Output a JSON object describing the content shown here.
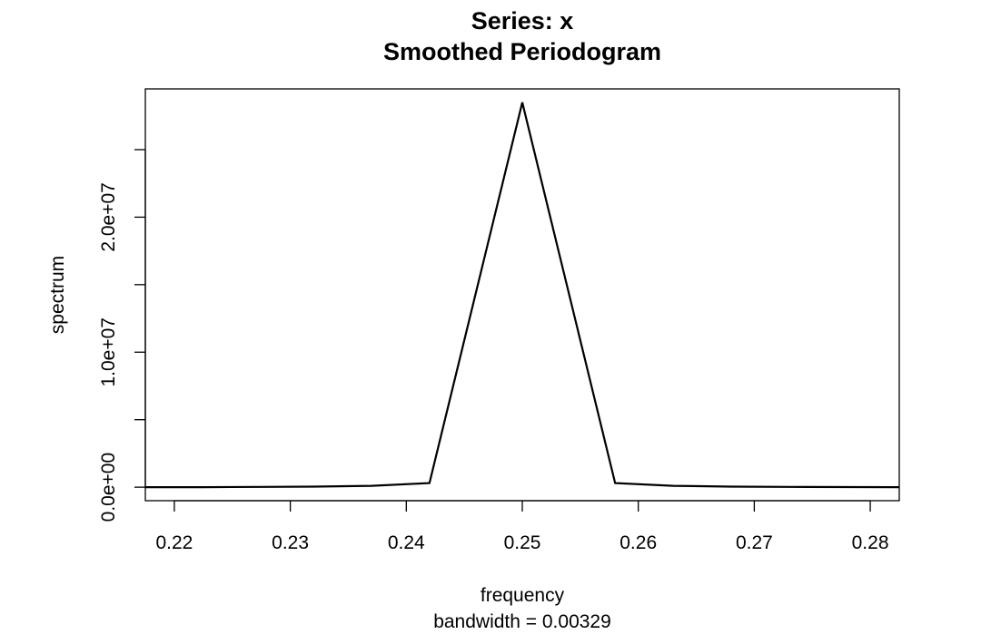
{
  "chart_data": {
    "type": "line",
    "title": "Series: x",
    "subtitle": "Smoothed Periodogram",
    "xlabel": "frequency",
    "sublabel": "bandwidth = 0.00329",
    "ylabel": "spectrum",
    "xlim": [
      0.2175,
      0.2825
    ],
    "ylim": [
      -1000000,
      29500000
    ],
    "x_ticks": [
      0.22,
      0.23,
      0.24,
      0.25,
      0.26,
      0.27,
      0.28
    ],
    "x_tick_labels": [
      "0.22",
      "0.23",
      "0.24",
      "0.25",
      "0.26",
      "0.27",
      "0.28"
    ],
    "y_ticks": [
      0,
      5000000,
      10000000,
      15000000,
      20000000,
      25000000
    ],
    "y_tick_labels": [
      "0.0e+00",
      "",
      "1.0e+07",
      "",
      "2.0e+07",
      ""
    ],
    "grid": false,
    "series": [
      {
        "x": [
          0.2175,
          0.2225,
          0.2275,
          0.232,
          0.237,
          0.242,
          0.25,
          0.258,
          0.263,
          0.268,
          0.273,
          0.2825
        ],
        "y": [
          0,
          0,
          20000,
          40000,
          100000,
          300000,
          28500000,
          300000,
          100000,
          40000,
          20000,
          0
        ]
      }
    ]
  }
}
